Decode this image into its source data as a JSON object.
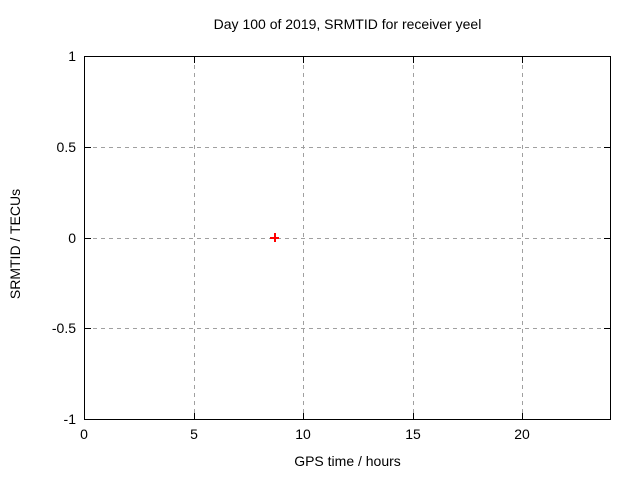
{
  "chart_data": {
    "type": "scatter",
    "title": "Day 100 of 2019, SRMTID for receiver yeel",
    "xlabel": "GPS time / hours",
    "ylabel": "SRMTID / TECUs",
    "xlim": [
      0,
      24
    ],
    "ylim": [
      -1,
      1
    ],
    "x_ticks": [
      0,
      5,
      10,
      15,
      20
    ],
    "x_tick_labels": [
      "0",
      "5",
      "10",
      "15",
      "20"
    ],
    "y_ticks": [
      1,
      0.5,
      0,
      -0.5,
      -1
    ],
    "y_tick_labels": [
      "1",
      "0.5",
      "0",
      "-0.5",
      "-1"
    ],
    "grid": true,
    "colors": {
      "background": "#ffffff",
      "text": "#000000",
      "axis_border": "#000000",
      "grid": "#a0a0a0",
      "marker": "#ff0000"
    },
    "series": [
      {
        "marker": "plus",
        "color": "#ff0000",
        "points": [
          {
            "x": 8.7,
            "y": 0.0
          }
        ]
      }
    ]
  }
}
